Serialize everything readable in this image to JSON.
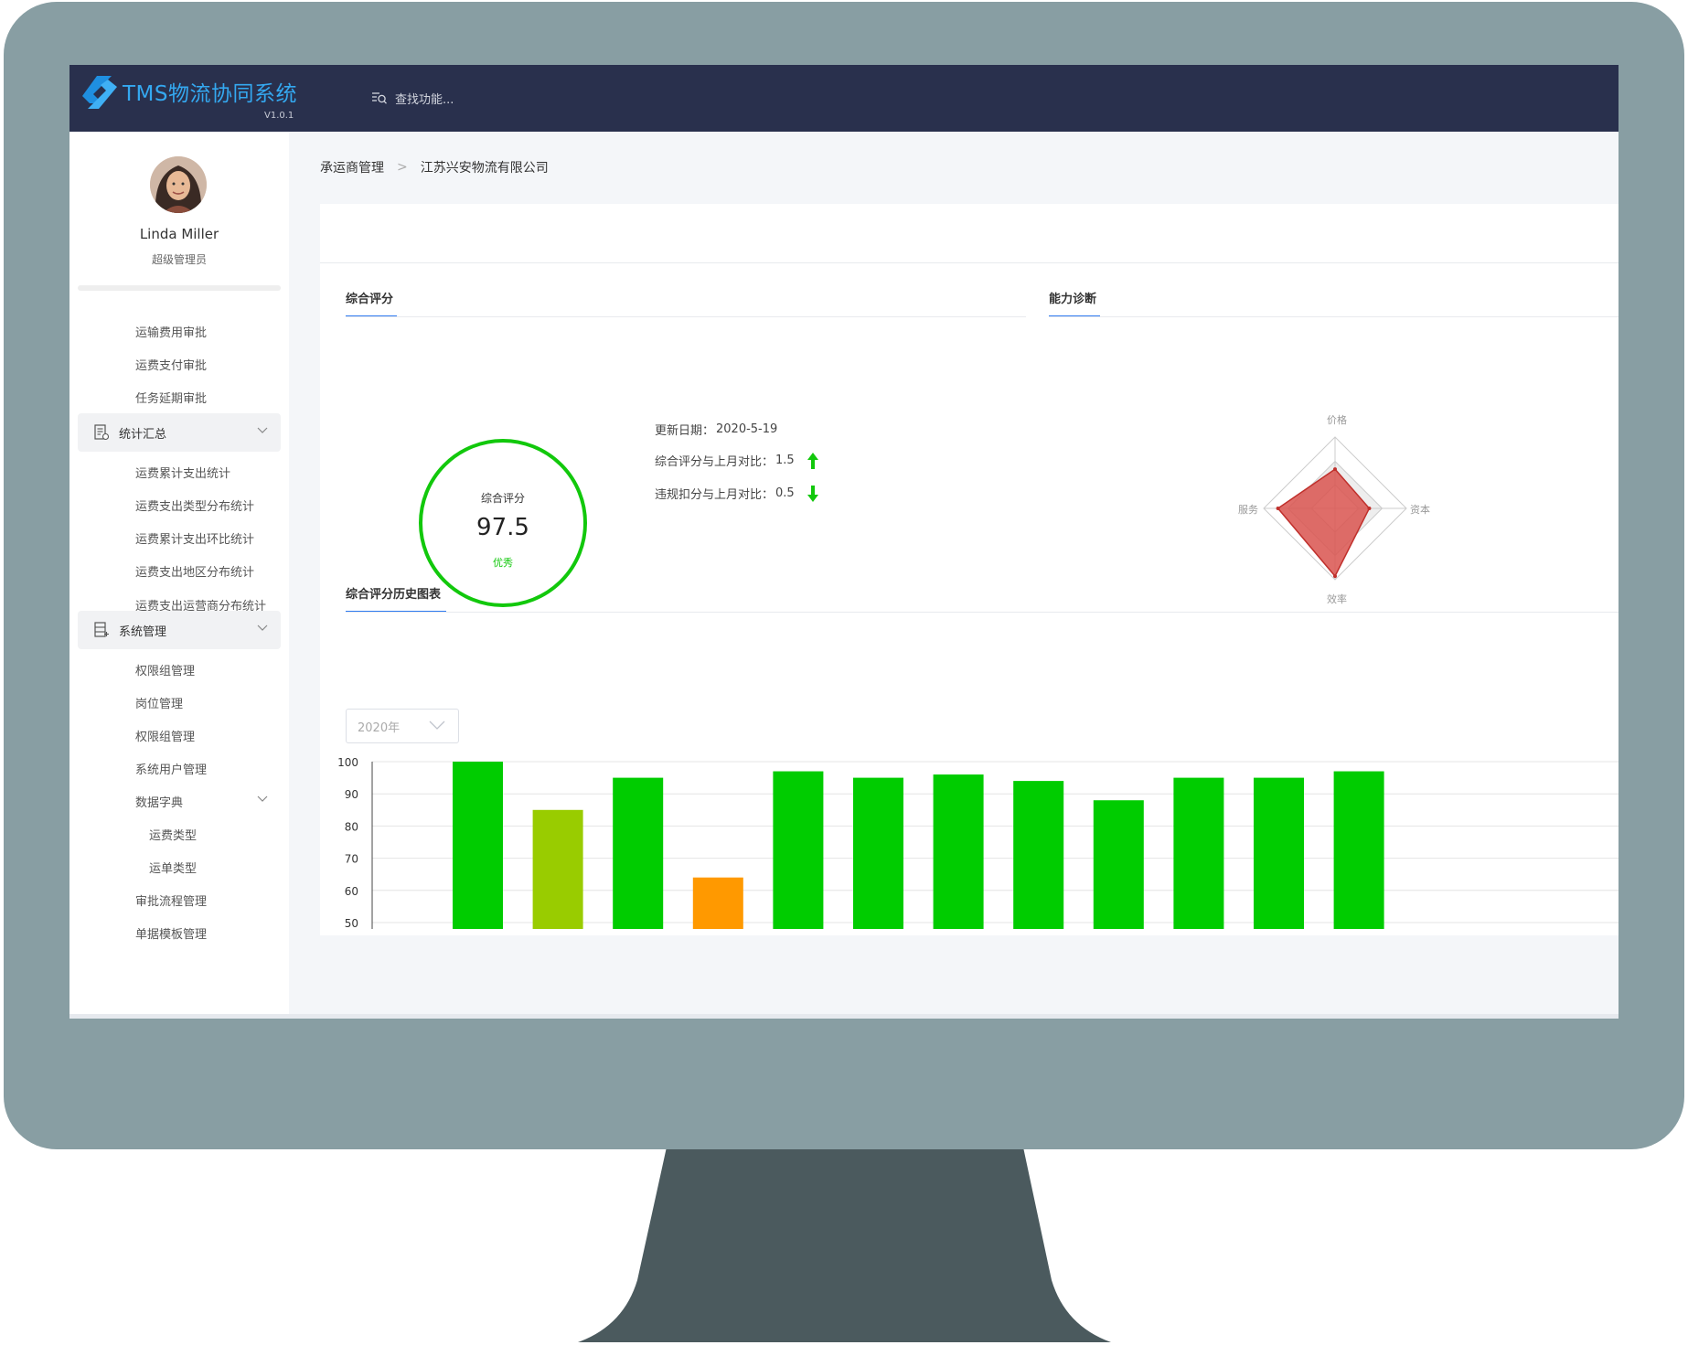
{
  "app": {
    "title": "TMS物流协同系统",
    "version": "V1.0.1"
  },
  "search": {
    "placeholder": "查找功能..."
  },
  "user": {
    "name": "Linda Miller",
    "role": "超级管理员"
  },
  "sidebar": {
    "items": [
      {
        "label": "运输费用审批",
        "level": "sub"
      },
      {
        "label": "运费支付审批",
        "level": "sub"
      },
      {
        "label": "任务延期审批",
        "level": "sub"
      }
    ],
    "group_stats": {
      "label": "统计汇总",
      "items": [
        "运费累计支出统计",
        "运费支出类型分布统计",
        "运费累计支出环比统计",
        "运费支出地区分布统计",
        "运费支出运营商分布统计"
      ]
    },
    "group_system": {
      "label": "系统管理",
      "items": [
        "权限组管理",
        "岗位管理",
        "权限组管理",
        "系统用户管理"
      ],
      "dict": {
        "label": "数据字典",
        "items": [
          "运费类型",
          "运单类型"
        ]
      },
      "after": [
        "审批流程管理",
        "单据模板管理"
      ]
    }
  },
  "breadcrumb": {
    "parent": "承运商管理",
    "current": "江苏兴安物流有限公司"
  },
  "sections": {
    "score": "综合评分",
    "diagnosis": "能力诊断",
    "history": "综合评分历史图表"
  },
  "score": {
    "label": "综合评分",
    "value": "97.5",
    "grade": "优秀",
    "color": "#12c80c"
  },
  "stats": {
    "update_label": "更新日期：",
    "update_value": "2020-5-19",
    "compare_label": "综合评分与上月对比：",
    "compare_value": "1.5",
    "compare_trend": "up",
    "penalty_label": "违规扣分与上月对比：",
    "penalty_value": "0.5",
    "penalty_trend": "down"
  },
  "year_select": {
    "value": "2020年"
  },
  "radar": {
    "axes": [
      "价格",
      "资本",
      "效率",
      "服务"
    ],
    "values": [
      0.55,
      0.48,
      0.95,
      0.8
    ],
    "fill": "#d9534f"
  },
  "chart_data": {
    "type": "bar",
    "categories": [
      "",
      "",
      "",
      "",
      "",
      "",
      "",
      "",
      "",
      "",
      "",
      ""
    ],
    "values": [
      100,
      85,
      95,
      64,
      97,
      95,
      96,
      94,
      88,
      95,
      95,
      97
    ],
    "colors": [
      "#00cc00",
      "#99cc00",
      "#00cc00",
      "#ff9900",
      "#00cc00",
      "#00cc00",
      "#00cc00",
      "#00cc00",
      "#00cc00",
      "#00cc00",
      "#00cc00",
      "#00cc00"
    ],
    "yticks": [
      "100",
      "90",
      "80",
      "70",
      "60",
      "50"
    ],
    "ylim": [
      48,
      100
    ],
    "grid": true
  }
}
